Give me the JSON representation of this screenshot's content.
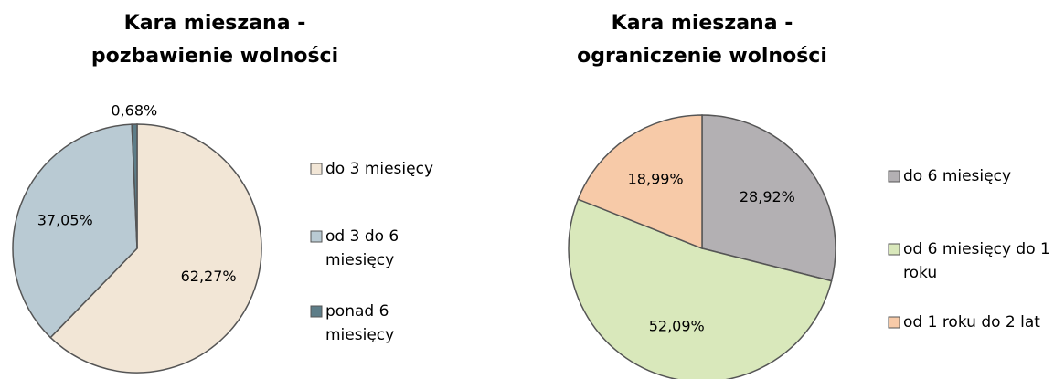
{
  "chart_data": [
    {
      "type": "pie",
      "title": [
        "Kara mieszana -",
        "pozbawienie wolności"
      ],
      "categories": [
        "do 3 miesięcy",
        "od 3 do 6 miesięcy",
        "ponad 6 miesięcy"
      ],
      "values": [
        62.27,
        37.05,
        0.68
      ],
      "value_labels": [
        "62,27%",
        "37,05%",
        "0,68%"
      ],
      "colors": [
        "#f2e6d6",
        "#b9cad3",
        "#5d7d88"
      ]
    },
    {
      "type": "pie",
      "title": [
        "Kara mieszana -",
        "ograniczenie wolności"
      ],
      "categories": [
        "do 6 miesięcy",
        "od 6 miesięcy do 1 roku",
        "od 1 roku do 2 lat"
      ],
      "values": [
        28.92,
        52.09,
        18.99
      ],
      "value_labels": [
        "28,92%",
        "52,09%",
        "18,99%"
      ],
      "colors": [
        "#b3b0b3",
        "#d9e8bb",
        "#f7caa8"
      ]
    }
  ]
}
